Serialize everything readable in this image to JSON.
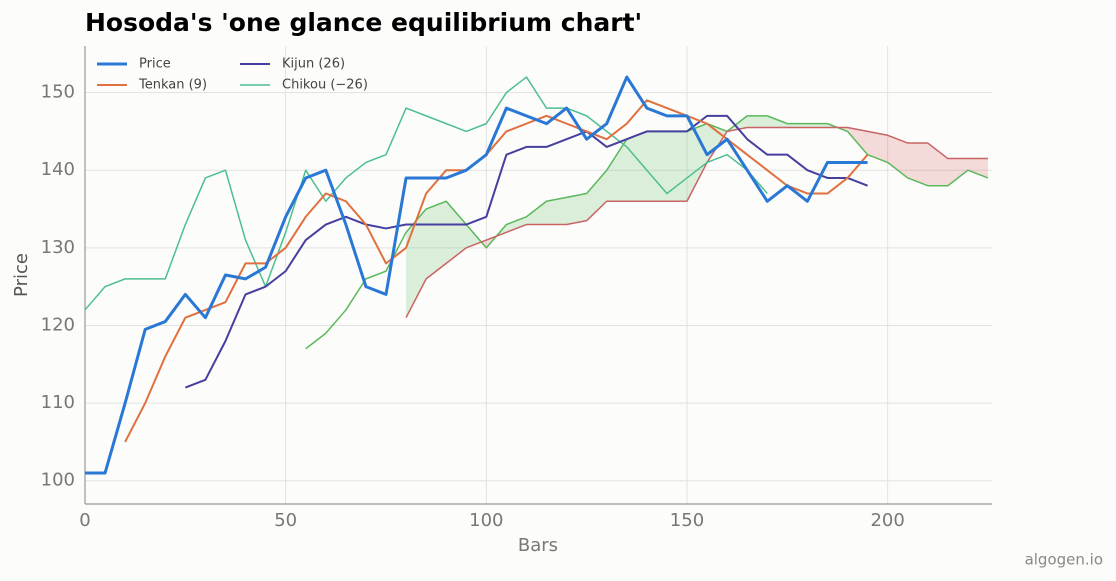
{
  "chart_data": {
    "type": "line",
    "title": "Hosoda's 'one glance equilibrium chart'",
    "x_label": "Bars",
    "y_label": "Price",
    "watermark": "algogen.io",
    "x": [
      0,
      5,
      10,
      15,
      20,
      25,
      30,
      35,
      40,
      45,
      50,
      55,
      60,
      65,
      70,
      75,
      80,
      85,
      90,
      95,
      100,
      105,
      110,
      115,
      120,
      125,
      130,
      135,
      140,
      145,
      150,
      155,
      160,
      165,
      170,
      175,
      180,
      185,
      190,
      195,
      200,
      205,
      210,
      215,
      220,
      225
    ],
    "series": [
      {
        "name": "Price",
        "color": "#2a78d6",
        "width": 3,
        "values": [
          101,
          101,
          110,
          119.5,
          120.5,
          124,
          121,
          126.5,
          126,
          127.5,
          134,
          139,
          140,
          133,
          125,
          124,
          139,
          139,
          139,
          140,
          142,
          148,
          147,
          146,
          148,
          144,
          146,
          152,
          148,
          147,
          147,
          142,
          144,
          140,
          136,
          138,
          136,
          141,
          141,
          141,
          null,
          null,
          null,
          null,
          null,
          null
        ]
      },
      {
        "name": "Tenkan (9)",
        "color": "#e07040",
        "width": 2,
        "values": [
          null,
          null,
          105,
          110,
          116,
          121,
          122,
          123,
          128,
          128,
          130,
          134,
          137,
          136,
          133,
          128,
          130,
          137,
          140,
          140,
          142,
          145,
          146,
          147,
          146,
          145,
          144,
          146,
          149,
          148,
          147,
          146,
          144,
          142,
          140,
          138,
          137,
          137,
          139,
          142,
          null,
          null,
          null,
          null,
          null,
          null
        ]
      },
      {
        "name": "Kijun (26)",
        "color": "#453f9e",
        "width": 2,
        "values": [
          null,
          null,
          null,
          null,
          null,
          112,
          113,
          118,
          124,
          125,
          127,
          131,
          133,
          134,
          133,
          132.5,
          133,
          133,
          133,
          133,
          134,
          142,
          143,
          143,
          144,
          145,
          143,
          144,
          145,
          145,
          145,
          147,
          147,
          144,
          142,
          142,
          140,
          139,
          139,
          138,
          null,
          null,
          null,
          null,
          null,
          null
        ]
      },
      {
        "name": "Chikou (−26)",
        "color": "#4cbf8f",
        "width": 1.5,
        "values": [
          122,
          125,
          126,
          126,
          126,
          133,
          139,
          140,
          131,
          125,
          132,
          140,
          136,
          139,
          141,
          142,
          148,
          147,
          146,
          145,
          146,
          150,
          152,
          148,
          148,
          147,
          145,
          143,
          140,
          137,
          139,
          141,
          142,
          140,
          137,
          null,
          null,
          null,
          null,
          null,
          null,
          null,
          null,
          null,
          null,
          null
        ]
      }
    ],
    "cloud": {
      "a_color": "#5cb85c",
      "b_color": "#c86464",
      "up_fill": "#5cb85c",
      "down_fill": "#d9534f",
      "a": [
        null,
        null,
        null,
        null,
        null,
        null,
        null,
        null,
        null,
        null,
        null,
        117,
        119,
        122,
        126,
        127,
        132,
        135,
        136,
        133,
        130,
        133,
        134,
        136,
        136.5,
        137,
        140,
        144,
        145,
        145,
        145,
        146,
        145,
        147,
        147,
        146,
        146,
        146,
        145,
        142,
        141,
        139,
        138,
        138,
        140,
        139
      ],
      "b": [
        null,
        null,
        null,
        null,
        null,
        null,
        null,
        null,
        null,
        null,
        null,
        null,
        null,
        null,
        null,
        null,
        121,
        126,
        128,
        130,
        131,
        132,
        133,
        133,
        133,
        133.5,
        136,
        136,
        136,
        136,
        136,
        141,
        145,
        145.5,
        145.5,
        145.5,
        145.5,
        145.5,
        145.5,
        145,
        144.5,
        143.5,
        143.5,
        141.5,
        141.5,
        141.5
      ]
    },
    "xlim": [
      0,
      226
    ],
    "ylim": [
      97,
      156
    ],
    "xticks": [
      0,
      50,
      100,
      150,
      200
    ],
    "yticks": [
      100,
      110,
      120,
      130,
      140,
      150
    ],
    "grid": true,
    "legend": "upper left"
  }
}
